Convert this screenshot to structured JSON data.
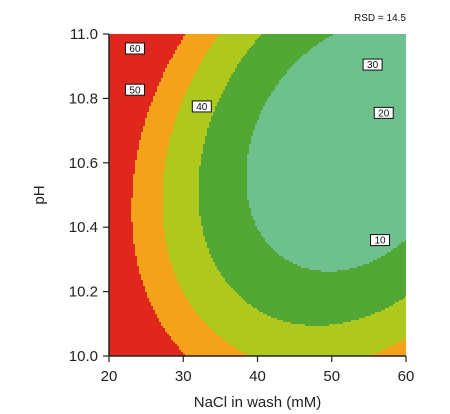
{
  "chart_data": {
    "type": "contour",
    "title": "",
    "annotation": "RSD = 14.5",
    "xlabel": "NaCl in wash (mM)",
    "ylabel": "pH",
    "xlim": [
      20,
      60
    ],
    "ylim": [
      10.0,
      11.0
    ],
    "x_ticks": [
      20,
      30,
      40,
      50,
      60
    ],
    "x_tick_labels": [
      "20",
      "30",
      "40",
      "50",
      "60"
    ],
    "y_ticks": [
      10.0,
      10.2,
      10.4,
      10.6,
      10.8,
      11.0
    ],
    "y_tick_labels": [
      "10.0",
      "10.2",
      "10.4",
      "10.6",
      "10.8",
      "11.0"
    ],
    "levels": [
      10,
      20,
      30,
      40,
      50,
      60
    ],
    "band_colors": [
      "#263f94",
      "#3f96d6",
      "#6ec08f",
      "#52a633",
      "#aec81d",
      "#f4a21a",
      "#e0271d"
    ],
    "contour_labels": [
      {
        "value": 60,
        "text": "60",
        "x": 23.5,
        "y": 10.955
      },
      {
        "value": 50,
        "text": "50",
        "x": 23.5,
        "y": 10.827
      },
      {
        "value": 40,
        "text": "40",
        "x": 32.5,
        "y": 10.775
      },
      {
        "value": 30,
        "text": "30",
        "x": 55.5,
        "y": 10.905
      },
      {
        "value": 20,
        "text": "20",
        "x": 57.0,
        "y": 10.755
      },
      {
        "value": 10,
        "text": "10",
        "x": 56.5,
        "y": 10.36
      }
    ],
    "grid": false,
    "legend": "none"
  }
}
